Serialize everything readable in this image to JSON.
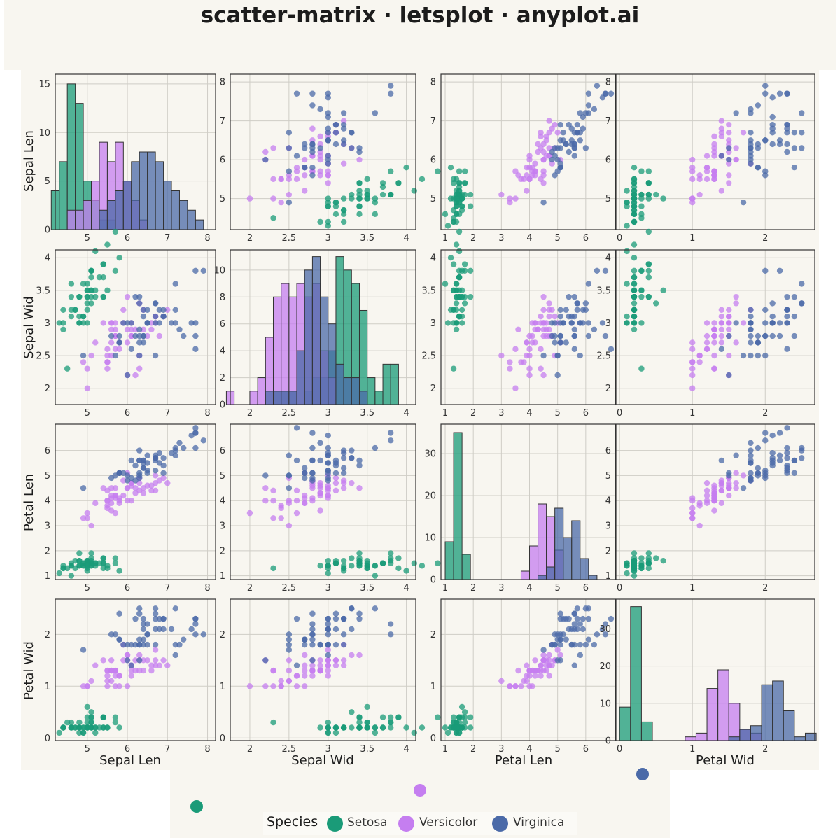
{
  "title": "scatter-matrix · letsplot · anyplot.ai",
  "colors": {
    "Setosa": "#1a9b78",
    "Versicolor": "#c57ef0",
    "Virginica": "#4b6aa8",
    "panel_bg": "#f8f6f0",
    "grid": "#cfcdc6"
  },
  "legend": {
    "title": "Species",
    "items": [
      {
        "label": "Setosa",
        "color": "#1a9b78"
      },
      {
        "label": "Versicolor",
        "color": "#c57ef0"
      },
      {
        "label": "Virginica",
        "color": "#4b6aa8"
      }
    ]
  },
  "chart_data": {
    "type": "scatter",
    "variables": [
      "Sepal Len",
      "Sepal Wid",
      "Petal Len",
      "Petal Wid"
    ],
    "species": [
      "Setosa",
      "Versicolor",
      "Virginica"
    ],
    "grid": true,
    "legend_position": "bottom",
    "axes": [
      {
        "name": "Sepal Len",
        "lim": [
          4.2,
          8.2
        ],
        "ticks": [
          4,
          5,
          6,
          7,
          8
        ]
      },
      {
        "name": "Sepal Wid",
        "lim": [
          1.75,
          4.12
        ],
        "ticks": [
          2,
          2.5,
          3,
          3.5,
          4
        ]
      },
      {
        "name": "Petal Len",
        "lim": [
          0.85,
          7.05
        ],
        "ticks": [
          1,
          2,
          3,
          4,
          5,
          6
        ]
      },
      {
        "name": "Petal Wid",
        "lim": [
          -0.05,
          2.68
        ],
        "ticks": [
          0,
          1,
          2
        ]
      }
    ],
    "histograms": [
      {
        "variable": "Sepal Len",
        "bin_start": 4.1,
        "bin_width": 0.2,
        "ylim": [
          0,
          16
        ],
        "yticks": [
          0,
          5,
          10,
          15
        ],
        "counts": {
          "Setosa": [
            4,
            7,
            15,
            13,
            5,
            3,
            1,
            1,
            0,
            0,
            0,
            0,
            0,
            0,
            0,
            0,
            0,
            0,
            0,
            0
          ],
          "Versicolor": [
            0,
            0,
            2,
            2,
            3,
            5,
            9,
            7,
            9,
            5,
            3,
            1,
            0,
            0,
            0,
            0,
            0,
            0,
            0,
            0
          ],
          "Virginica": [
            0,
            0,
            0,
            0,
            0,
            0,
            2,
            3,
            4,
            5,
            7,
            8,
            8,
            7,
            5,
            4,
            3,
            2,
            1,
            0
          ]
        }
      },
      {
        "variable": "Sepal Wid",
        "bin_start": 1.7,
        "bin_width": 0.1,
        "ylim": [
          0,
          11.5
        ],
        "yticks": [
          0,
          2,
          4,
          6,
          8,
          10
        ],
        "counts": {
          "Setosa": [
            0,
            0,
            0,
            0,
            0,
            0,
            1,
            1,
            1,
            0,
            1,
            2,
            2,
            4,
            11,
            10,
            9,
            7,
            2,
            1,
            3,
            3
          ],
          "Versicolor": [
            1,
            0,
            0,
            1,
            2,
            5,
            8,
            9,
            8,
            9,
            8,
            9,
            4,
            2,
            0,
            0,
            0,
            0,
            0,
            0,
            0,
            0
          ],
          "Virginica": [
            0,
            0,
            0,
            0,
            0,
            1,
            1,
            1,
            1,
            4,
            10,
            11,
            8,
            6,
            3,
            2,
            2,
            1,
            0,
            0,
            0,
            0
          ]
        }
      },
      {
        "variable": "Petal Len",
        "bin_start": 1.0,
        "bin_width": 0.3,
        "ylim": [
          0,
          37
        ],
        "yticks": [
          0,
          10,
          20,
          30
        ],
        "counts": {
          "Setosa": [
            9,
            35,
            6,
            0,
            0,
            0,
            0,
            0,
            0,
            0,
            0,
            0,
            0,
            0,
            0,
            0,
            0,
            0
          ],
          "Versicolor": [
            0,
            0,
            0,
            0,
            0,
            0,
            0,
            0,
            0,
            2,
            8,
            18,
            15,
            7,
            0,
            0,
            0,
            0
          ],
          "Virginica": [
            0,
            0,
            0,
            0,
            0,
            0,
            0,
            0,
            0,
            0,
            0,
            1,
            3,
            17,
            10,
            14,
            5,
            1
          ]
        }
      },
      {
        "variable": "Petal Wid",
        "bin_start": 0.0,
        "bin_width": 0.15,
        "ylim": [
          0,
          38
        ],
        "yticks": [
          0,
          10,
          20,
          30
        ],
        "counts": {
          "Setosa": [
            9,
            36,
            5,
            0,
            0,
            0,
            0,
            0,
            0,
            0,
            0,
            0,
            0,
            0,
            0,
            0,
            0,
            0
          ],
          "Versicolor": [
            0,
            0,
            0,
            0,
            0,
            0,
            1,
            2,
            14,
            19,
            10,
            3,
            2,
            0,
            0,
            0,
            0,
            0
          ],
          "Virginica": [
            0,
            0,
            0,
            0,
            0,
            0,
            0,
            0,
            0,
            0,
            1,
            3,
            4,
            15,
            16,
            8,
            1,
            2
          ]
        }
      }
    ],
    "points": {
      "Setosa": [
        [
          5.1,
          3.5,
          1.4,
          0.2
        ],
        [
          4.9,
          3.0,
          1.4,
          0.2
        ],
        [
          4.7,
          3.2,
          1.3,
          0.2
        ],
        [
          4.6,
          3.1,
          1.5,
          0.2
        ],
        [
          5.0,
          3.6,
          1.4,
          0.2
        ],
        [
          5.4,
          3.9,
          1.7,
          0.4
        ],
        [
          4.6,
          3.4,
          1.4,
          0.3
        ],
        [
          5.0,
          3.4,
          1.5,
          0.2
        ],
        [
          4.4,
          2.9,
          1.4,
          0.2
        ],
        [
          4.9,
          3.1,
          1.5,
          0.1
        ],
        [
          5.4,
          3.7,
          1.5,
          0.2
        ],
        [
          4.8,
          3.4,
          1.6,
          0.2
        ],
        [
          4.8,
          3.0,
          1.4,
          0.1
        ],
        [
          4.3,
          3.0,
          1.1,
          0.1
        ],
        [
          5.8,
          4.0,
          1.2,
          0.2
        ],
        [
          5.7,
          4.4,
          1.5,
          0.4
        ],
        [
          5.4,
          3.9,
          1.3,
          0.4
        ],
        [
          5.1,
          3.5,
          1.4,
          0.3
        ],
        [
          5.7,
          3.8,
          1.7,
          0.3
        ],
        [
          5.1,
          3.8,
          1.5,
          0.3
        ],
        [
          5.4,
          3.4,
          1.7,
          0.2
        ],
        [
          5.1,
          3.7,
          1.5,
          0.4
        ],
        [
          4.6,
          3.6,
          1.0,
          0.2
        ],
        [
          5.1,
          3.3,
          1.7,
          0.5
        ],
        [
          4.8,
          3.4,
          1.9,
          0.2
        ],
        [
          5.0,
          3.0,
          1.6,
          0.2
        ],
        [
          5.0,
          3.4,
          1.6,
          0.4
        ],
        [
          5.2,
          3.5,
          1.5,
          0.2
        ],
        [
          5.2,
          3.4,
          1.4,
          0.2
        ],
        [
          4.7,
          3.2,
          1.6,
          0.2
        ],
        [
          4.8,
          3.1,
          1.6,
          0.2
        ],
        [
          5.4,
          3.4,
          1.5,
          0.4
        ],
        [
          5.2,
          4.1,
          1.5,
          0.1
        ],
        [
          5.5,
          4.2,
          1.4,
          0.2
        ],
        [
          4.9,
          3.1,
          1.5,
          0.2
        ],
        [
          5.0,
          3.2,
          1.2,
          0.2
        ],
        [
          5.5,
          3.5,
          1.3,
          0.2
        ],
        [
          4.9,
          3.6,
          1.4,
          0.1
        ],
        [
          4.4,
          3.0,
          1.3,
          0.2
        ],
        [
          5.1,
          3.4,
          1.5,
          0.2
        ],
        [
          5.0,
          3.5,
          1.3,
          0.3
        ],
        [
          4.5,
          2.3,
          1.3,
          0.3
        ],
        [
          4.4,
          3.2,
          1.3,
          0.2
        ],
        [
          5.0,
          3.5,
          1.6,
          0.6
        ],
        [
          5.1,
          3.8,
          1.9,
          0.4
        ],
        [
          4.8,
          3.0,
          1.4,
          0.3
        ],
        [
          5.1,
          3.8,
          1.6,
          0.2
        ],
        [
          4.6,
          3.2,
          1.4,
          0.2
        ],
        [
          5.3,
          3.7,
          1.5,
          0.2
        ],
        [
          5.0,
          3.3,
          1.4,
          0.2
        ]
      ],
      "Versicolor": [
        [
          7.0,
          3.2,
          4.7,
          1.4
        ],
        [
          6.4,
          3.2,
          4.5,
          1.5
        ],
        [
          6.9,
          3.1,
          4.9,
          1.5
        ],
        [
          5.5,
          2.3,
          4.0,
          1.3
        ],
        [
          6.5,
          2.8,
          4.6,
          1.5
        ],
        [
          5.7,
          2.8,
          4.5,
          1.3
        ],
        [
          6.3,
          3.3,
          4.7,
          1.6
        ],
        [
          4.9,
          2.4,
          3.3,
          1.0
        ],
        [
          6.6,
          2.9,
          4.6,
          1.3
        ],
        [
          5.2,
          2.7,
          3.9,
          1.4
        ],
        [
          5.0,
          2.0,
          3.5,
          1.0
        ],
        [
          5.9,
          3.0,
          4.2,
          1.5
        ],
        [
          6.0,
          2.2,
          4.0,
          1.0
        ],
        [
          6.1,
          2.9,
          4.7,
          1.4
        ],
        [
          5.6,
          2.9,
          3.6,
          1.3
        ],
        [
          6.7,
          3.1,
          4.4,
          1.4
        ],
        [
          5.6,
          3.0,
          4.5,
          1.5
        ],
        [
          5.8,
          2.7,
          4.1,
          1.0
        ],
        [
          6.2,
          2.2,
          4.5,
          1.5
        ],
        [
          5.6,
          2.5,
          3.9,
          1.1
        ],
        [
          5.9,
          3.2,
          4.8,
          1.8
        ],
        [
          6.1,
          2.8,
          4.0,
          1.3
        ],
        [
          6.3,
          2.5,
          4.9,
          1.5
        ],
        [
          6.1,
          2.8,
          4.7,
          1.2
        ],
        [
          6.4,
          2.9,
          4.3,
          1.3
        ],
        [
          6.6,
          3.0,
          4.4,
          1.4
        ],
        [
          6.8,
          2.8,
          4.8,
          1.4
        ],
        [
          6.7,
          3.0,
          5.0,
          1.7
        ],
        [
          6.0,
          2.9,
          4.5,
          1.5
        ],
        [
          5.7,
          2.6,
          3.5,
          1.0
        ],
        [
          5.5,
          2.4,
          3.8,
          1.1
        ],
        [
          5.5,
          2.4,
          3.7,
          1.0
        ],
        [
          5.8,
          2.7,
          3.9,
          1.2
        ],
        [
          6.0,
          2.7,
          5.1,
          1.6
        ],
        [
          5.4,
          3.0,
          4.5,
          1.5
        ],
        [
          6.0,
          3.4,
          4.5,
          1.6
        ],
        [
          6.7,
          3.1,
          4.7,
          1.5
        ],
        [
          6.3,
          2.3,
          4.4,
          1.3
        ],
        [
          5.6,
          3.0,
          4.1,
          1.3
        ],
        [
          5.5,
          2.5,
          4.0,
          1.3
        ],
        [
          5.5,
          2.6,
          4.4,
          1.2
        ],
        [
          6.1,
          3.0,
          4.6,
          1.4
        ],
        [
          5.8,
          2.6,
          4.0,
          1.2
        ],
        [
          5.0,
          2.3,
          3.3,
          1.0
        ],
        [
          5.6,
          2.7,
          4.2,
          1.3
        ],
        [
          5.7,
          3.0,
          4.2,
          1.2
        ],
        [
          5.7,
          2.9,
          4.2,
          1.3
        ],
        [
          6.2,
          2.9,
          4.3,
          1.3
        ],
        [
          5.1,
          2.5,
          3.0,
          1.1
        ],
        [
          5.7,
          2.8,
          4.1,
          1.3
        ]
      ],
      "Virginica": [
        [
          6.3,
          3.3,
          6.0,
          2.5
        ],
        [
          5.8,
          2.7,
          5.1,
          1.9
        ],
        [
          7.1,
          3.0,
          5.9,
          2.1
        ],
        [
          6.3,
          2.9,
          5.6,
          1.8
        ],
        [
          6.5,
          3.0,
          5.8,
          2.2
        ],
        [
          7.6,
          3.0,
          6.6,
          2.1
        ],
        [
          4.9,
          2.5,
          4.5,
          1.7
        ],
        [
          7.3,
          2.9,
          6.3,
          1.8
        ],
        [
          6.7,
          2.5,
          5.8,
          1.8
        ],
        [
          7.2,
          3.6,
          6.1,
          2.5
        ],
        [
          6.5,
          3.2,
          5.1,
          2.0
        ],
        [
          6.4,
          2.7,
          5.3,
          1.9
        ],
        [
          6.8,
          3.0,
          5.5,
          2.1
        ],
        [
          5.7,
          2.5,
          5.0,
          2.0
        ],
        [
          5.8,
          2.8,
          5.1,
          2.4
        ],
        [
          6.4,
          3.2,
          5.3,
          2.3
        ],
        [
          6.5,
          3.0,
          5.5,
          1.8
        ],
        [
          7.7,
          3.8,
          6.7,
          2.2
        ],
        [
          7.7,
          2.6,
          6.9,
          2.3
        ],
        [
          6.0,
          2.2,
          5.0,
          1.5
        ],
        [
          6.9,
          3.2,
          5.7,
          2.3
        ],
        [
          5.6,
          2.8,
          4.9,
          2.0
        ],
        [
          7.7,
          2.8,
          6.7,
          2.0
        ],
        [
          6.3,
          2.7,
          4.9,
          1.8
        ],
        [
          6.7,
          3.3,
          5.7,
          2.1
        ],
        [
          7.2,
          3.2,
          6.0,
          1.8
        ],
        [
          6.2,
          2.8,
          4.8,
          1.8
        ],
        [
          6.1,
          3.0,
          4.9,
          1.8
        ],
        [
          6.4,
          2.8,
          5.6,
          2.1
        ],
        [
          7.2,
          3.0,
          5.8,
          1.6
        ],
        [
          7.4,
          2.8,
          6.1,
          1.9
        ],
        [
          7.9,
          3.8,
          6.4,
          2.0
        ],
        [
          6.4,
          2.8,
          5.6,
          2.2
        ],
        [
          6.3,
          2.8,
          5.1,
          1.5
        ],
        [
          6.1,
          2.6,
          5.6,
          1.4
        ],
        [
          7.7,
          3.0,
          6.1,
          2.3
        ],
        [
          6.3,
          3.4,
          5.6,
          2.4
        ],
        [
          6.4,
          3.1,
          5.5,
          1.8
        ],
        [
          6.0,
          3.0,
          4.8,
          1.8
        ],
        [
          6.9,
          3.1,
          5.4,
          2.1
        ],
        [
          6.7,
          3.1,
          5.6,
          2.4
        ],
        [
          6.9,
          3.1,
          5.1,
          2.3
        ],
        [
          5.8,
          2.7,
          5.1,
          1.9
        ],
        [
          6.8,
          3.2,
          5.9,
          2.3
        ],
        [
          6.7,
          3.3,
          5.7,
          2.5
        ],
        [
          6.7,
          3.0,
          5.2,
          2.3
        ],
        [
          6.3,
          2.5,
          5.0,
          1.9
        ],
        [
          6.5,
          3.0,
          5.2,
          2.0
        ],
        [
          6.2,
          3.4,
          5.4,
          2.3
        ],
        [
          5.9,
          3.0,
          5.1,
          1.8
        ]
      ]
    }
  }
}
